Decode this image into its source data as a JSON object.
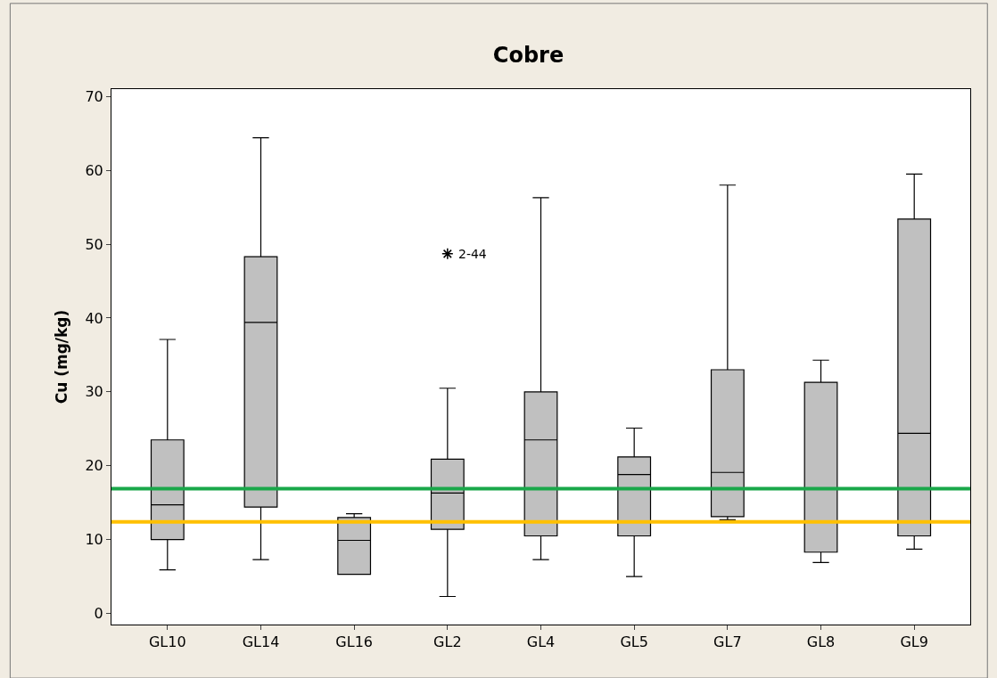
{
  "chart_data": {
    "type": "box",
    "title": "Cobre",
    "ylabel": "Cu (mg/kg)",
    "categories": [
      "GL10",
      "GL14",
      "GL16",
      "GL2",
      "GL4",
      "GL5",
      "GL7",
      "GL8",
      "GL9"
    ],
    "color": "#c0c0c0",
    "boxes": [
      {
        "low": 5.9,
        "q1": 10.0,
        "median": 14.7,
        "q3": 23.5,
        "high": 37.1
      },
      {
        "low": 7.3,
        "q1": 14.4,
        "median": 39.4,
        "q3": 48.3,
        "high": 64.4
      },
      {
        "low": 5.3,
        "q1": 5.3,
        "median": 9.9,
        "q3": 13.0,
        "high": 13.5
      },
      {
        "low": 2.3,
        "q1": 11.4,
        "median": 16.3,
        "q3": 20.9,
        "high": 30.5,
        "outliers": [
          48.7
        ]
      },
      {
        "low": 7.3,
        "q1": 10.5,
        "median": 23.5,
        "q3": 30.0,
        "high": 56.3
      },
      {
        "low": 5.0,
        "q1": 10.5,
        "median": 18.8,
        "q3": 21.2,
        "high": 25.1
      },
      {
        "low": 12.7,
        "q1": 13.1,
        "median": 19.1,
        "q3": 33.0,
        "high": 58.0
      },
      {
        "low": 6.9,
        "q1": 8.3,
        "median": 17.0,
        "q3": 31.3,
        "high": 34.3
      },
      {
        "low": 8.7,
        "q1": 10.5,
        "median": 24.4,
        "q3": 53.4,
        "high": 59.5
      }
    ],
    "annotations": [
      "2-44"
    ],
    "ref_lines": [
      {
        "axis": "y",
        "value": 16.9,
        "color": "#1aa84a"
      },
      {
        "axis": "y",
        "value": 12.4,
        "color": "#ffc000"
      }
    ],
    "ylim": [
      -1.5,
      71
    ],
    "yticks": [
      0,
      10,
      20,
      30,
      40,
      50,
      60,
      70
    ],
    "marker": "star"
  }
}
